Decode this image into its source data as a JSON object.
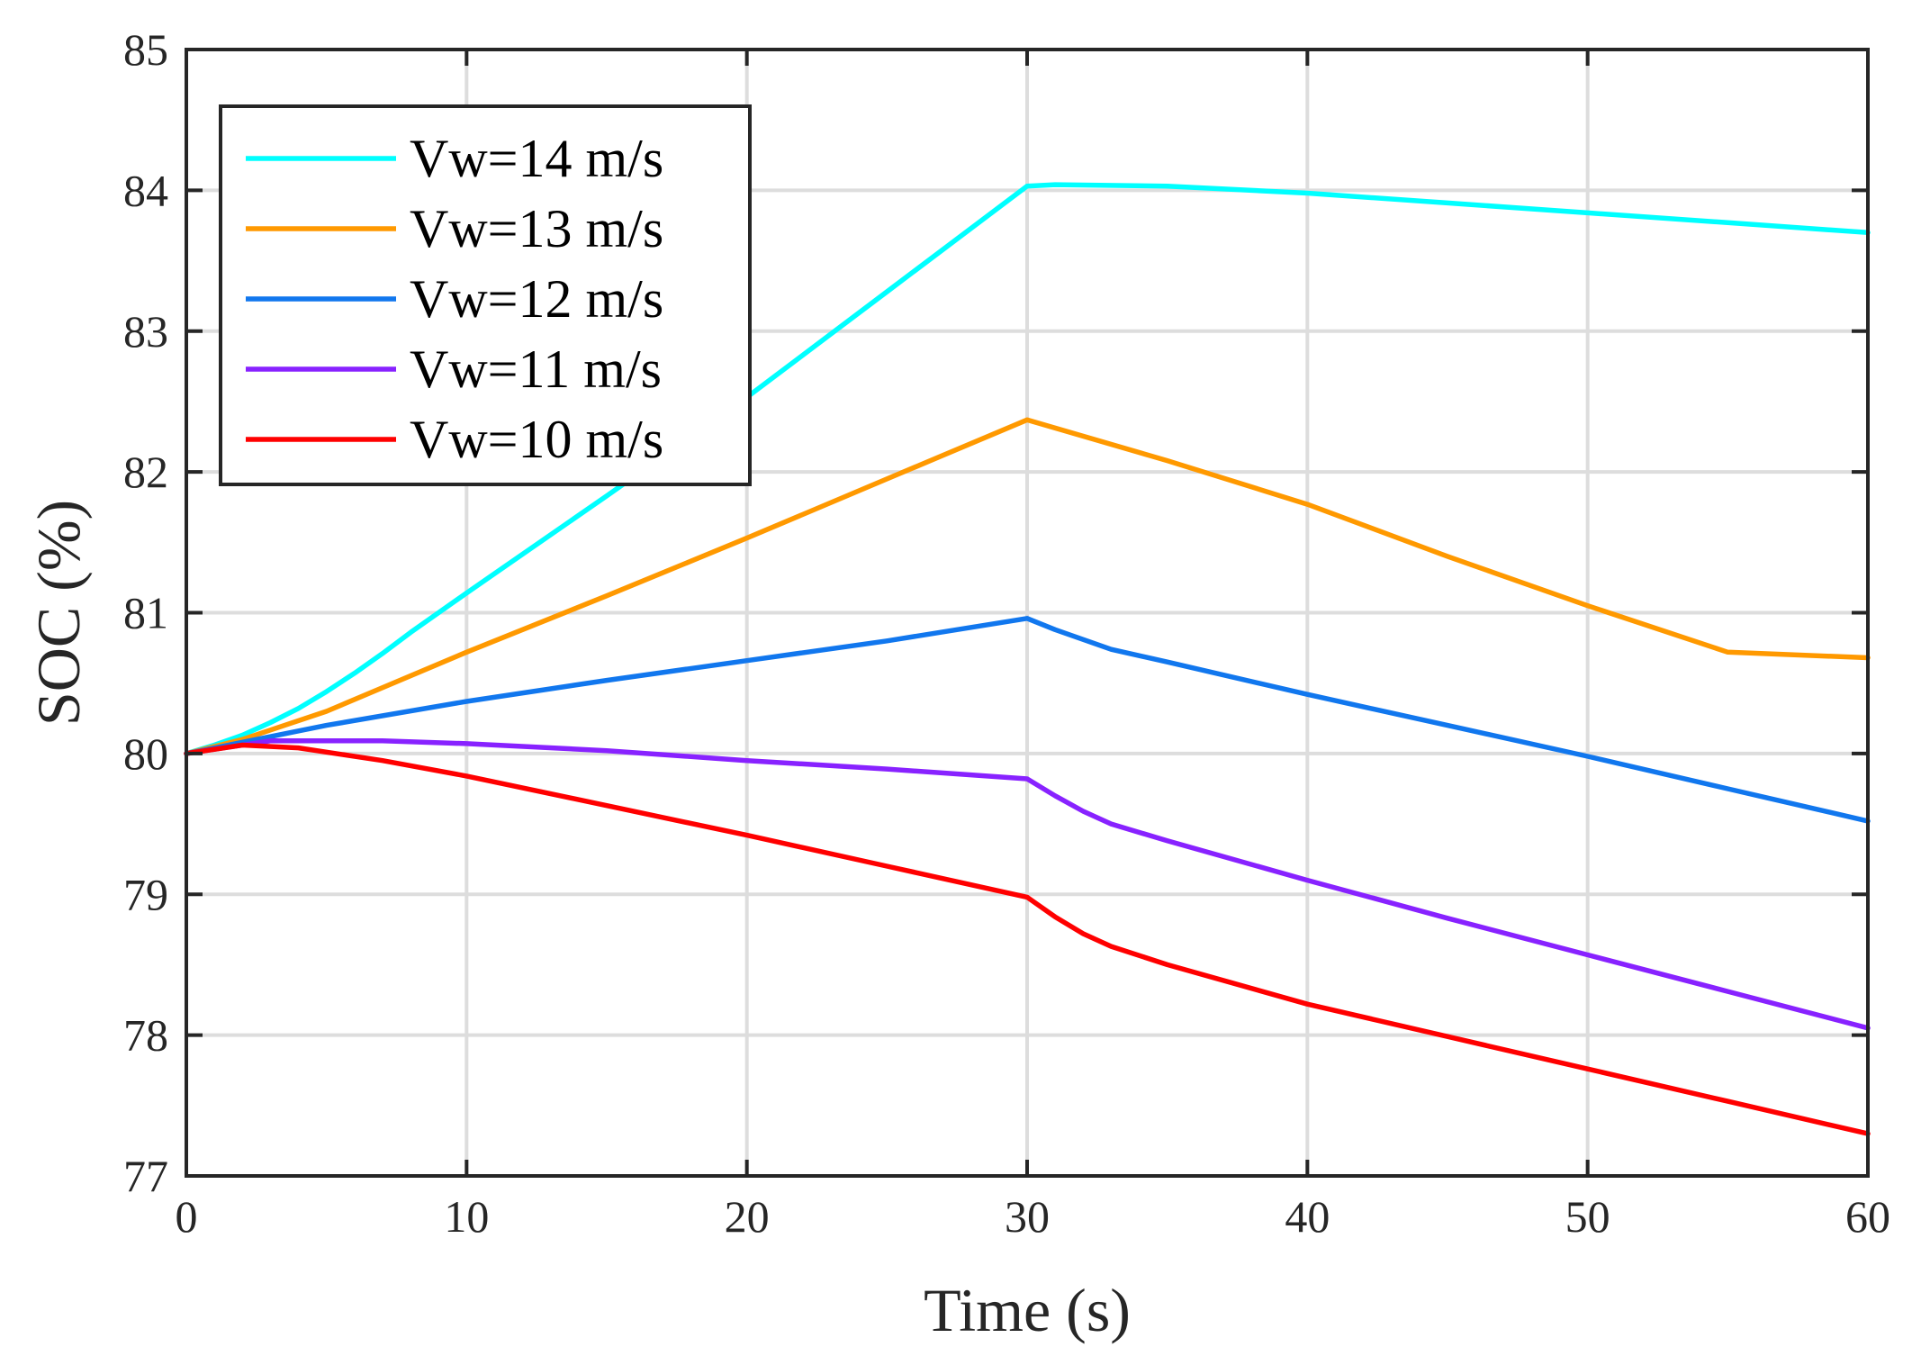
{
  "chart_data": {
    "type": "line",
    "title": "",
    "xlabel": "Time (s)",
    "ylabel": "SOC (%)",
    "xlim": [
      0,
      60
    ],
    "ylim": [
      77,
      85
    ],
    "xticks": [
      "0",
      "10",
      "20",
      "30",
      "40",
      "50",
      "60"
    ],
    "yticks": [
      "77",
      "78",
      "79",
      "80",
      "81",
      "82",
      "83",
      "84",
      "85"
    ],
    "grid": true,
    "legend_position": "top-left",
    "series": [
      {
        "name": "Vw=14 m/s",
        "color": "#00FFFF",
        "points": [
          [
            0,
            80.0
          ],
          [
            1,
            80.06
          ],
          [
            2,
            80.13
          ],
          [
            3,
            80.22
          ],
          [
            4,
            80.32
          ],
          [
            5,
            80.44
          ],
          [
            6,
            80.57
          ],
          [
            7,
            80.71
          ],
          [
            8,
            80.86
          ],
          [
            10,
            81.14
          ],
          [
            15,
            81.83
          ],
          [
            20,
            82.53
          ],
          [
            25,
            83.28
          ],
          [
            30,
            84.03
          ],
          [
            31,
            84.04
          ],
          [
            35,
            84.03
          ],
          [
            40,
            83.98
          ],
          [
            45,
            83.91
          ],
          [
            50,
            83.84
          ],
          [
            55,
            83.77
          ],
          [
            60,
            83.7
          ]
        ]
      },
      {
        "name": "Vw=13 m/s",
        "color": "#FF9900",
        "points": [
          [
            0,
            80.0
          ],
          [
            2,
            80.1
          ],
          [
            5,
            80.3
          ],
          [
            10,
            80.72
          ],
          [
            15,
            81.12
          ],
          [
            20,
            81.53
          ],
          [
            25,
            81.95
          ],
          [
            30,
            82.37
          ],
          [
            35,
            82.08
          ],
          [
            40,
            81.77
          ],
          [
            45,
            81.4
          ],
          [
            50,
            81.05
          ],
          [
            55,
            80.72
          ],
          [
            60,
            80.68
          ]
        ]
      },
      {
        "name": "Vw=12 m/s",
        "color": "#1177EE",
        "points": [
          [
            0,
            80.0
          ],
          [
            5,
            80.2
          ],
          [
            10,
            80.37
          ],
          [
            15,
            80.52
          ],
          [
            20,
            80.66
          ],
          [
            25,
            80.8
          ],
          [
            30,
            80.96
          ],
          [
            31,
            80.88
          ],
          [
            33,
            80.74
          ],
          [
            35,
            80.65
          ],
          [
            40,
            80.42
          ],
          [
            45,
            80.2
          ],
          [
            50,
            79.98
          ],
          [
            55,
            79.75
          ],
          [
            60,
            79.52
          ]
        ]
      },
      {
        "name": "Vw=11 m/s",
        "color": "#8822FF",
        "points": [
          [
            0,
            80.0
          ],
          [
            3,
            80.09
          ],
          [
            7,
            80.09
          ],
          [
            10,
            80.07
          ],
          [
            15,
            80.02
          ],
          [
            20,
            79.95
          ],
          [
            25,
            79.89
          ],
          [
            30,
            79.82
          ],
          [
            31,
            79.7
          ],
          [
            32,
            79.59
          ],
          [
            33,
            79.5
          ],
          [
            35,
            79.38
          ],
          [
            40,
            79.1
          ],
          [
            45,
            78.83
          ],
          [
            50,
            78.57
          ],
          [
            55,
            78.31
          ],
          [
            60,
            78.05
          ]
        ]
      },
      {
        "name": "Vw=10 m/s",
        "color": "#FF0000",
        "points": [
          [
            0,
            80.0
          ],
          [
            2,
            80.06
          ],
          [
            4,
            80.04
          ],
          [
            7,
            79.95
          ],
          [
            10,
            79.84
          ],
          [
            15,
            79.63
          ],
          [
            20,
            79.42
          ],
          [
            25,
            79.2
          ],
          [
            30,
            78.98
          ],
          [
            31,
            78.84
          ],
          [
            32,
            78.72
          ],
          [
            33,
            78.63
          ],
          [
            35,
            78.5
          ],
          [
            40,
            78.22
          ],
          [
            45,
            77.99
          ],
          [
            50,
            77.76
          ],
          [
            55,
            77.53
          ],
          [
            60,
            77.3
          ]
        ]
      }
    ]
  }
}
